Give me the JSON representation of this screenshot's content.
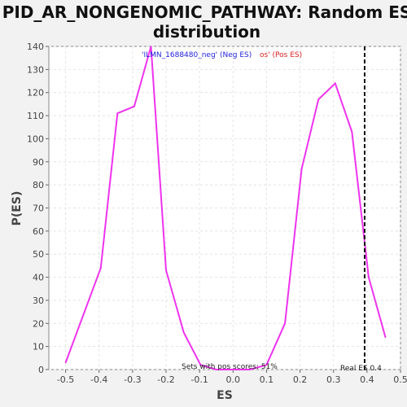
{
  "chart_data": {
    "type": "line",
    "title_line1": "PID_AR_NONGENOMIC_PATHWAY: Random ES",
    "title_line2": "distribution",
    "xlabel": "ES",
    "ylabel": "P(ES)",
    "xlim": [
      -0.55,
      0.5
    ],
    "ylim": [
      0,
      140
    ],
    "xticks": [
      -0.5,
      -0.4,
      -0.3,
      -0.2,
      -0.1,
      0.0,
      0.1,
      0.2,
      0.3,
      0.4,
      0.5
    ],
    "xtick_labels": [
      "-0.5",
      "-0.4",
      "-0.3",
      "-0.2",
      "-0.1",
      "0.0",
      "0.1",
      "0.2",
      "0.3",
      "0.4",
      "0.5"
    ],
    "yticks": [
      0,
      10,
      20,
      30,
      40,
      50,
      60,
      70,
      80,
      90,
      100,
      110,
      120,
      130,
      140
    ],
    "grid": true,
    "series": [
      {
        "color": "#ee33ee",
        "x": [
          -0.5,
          -0.395,
          -0.345,
          -0.295,
          -0.245,
          -0.2,
          -0.147,
          -0.097,
          -0.05,
          0.0,
          0.05,
          0.1,
          0.155,
          0.205,
          0.255,
          0.305,
          0.355,
          0.405,
          0.455
        ],
        "y": [
          3,
          44,
          111,
          114,
          140,
          43,
          16,
          2,
          0,
          0,
          0,
          2,
          20,
          87,
          117,
          124,
          103,
          40,
          14
        ]
      }
    ],
    "real_es": 0.393,
    "legend_neg": "'ILMN_1688480_neg' (Neg ES)",
    "legend_pos": "os' (Pos ES)",
    "legend_neg_color": "#2222dd",
    "legend_pos_color": "#dd2222",
    "annotation_sets": "Sets with pos scores: 51%",
    "annotation_real": "Real ES 0.4"
  }
}
